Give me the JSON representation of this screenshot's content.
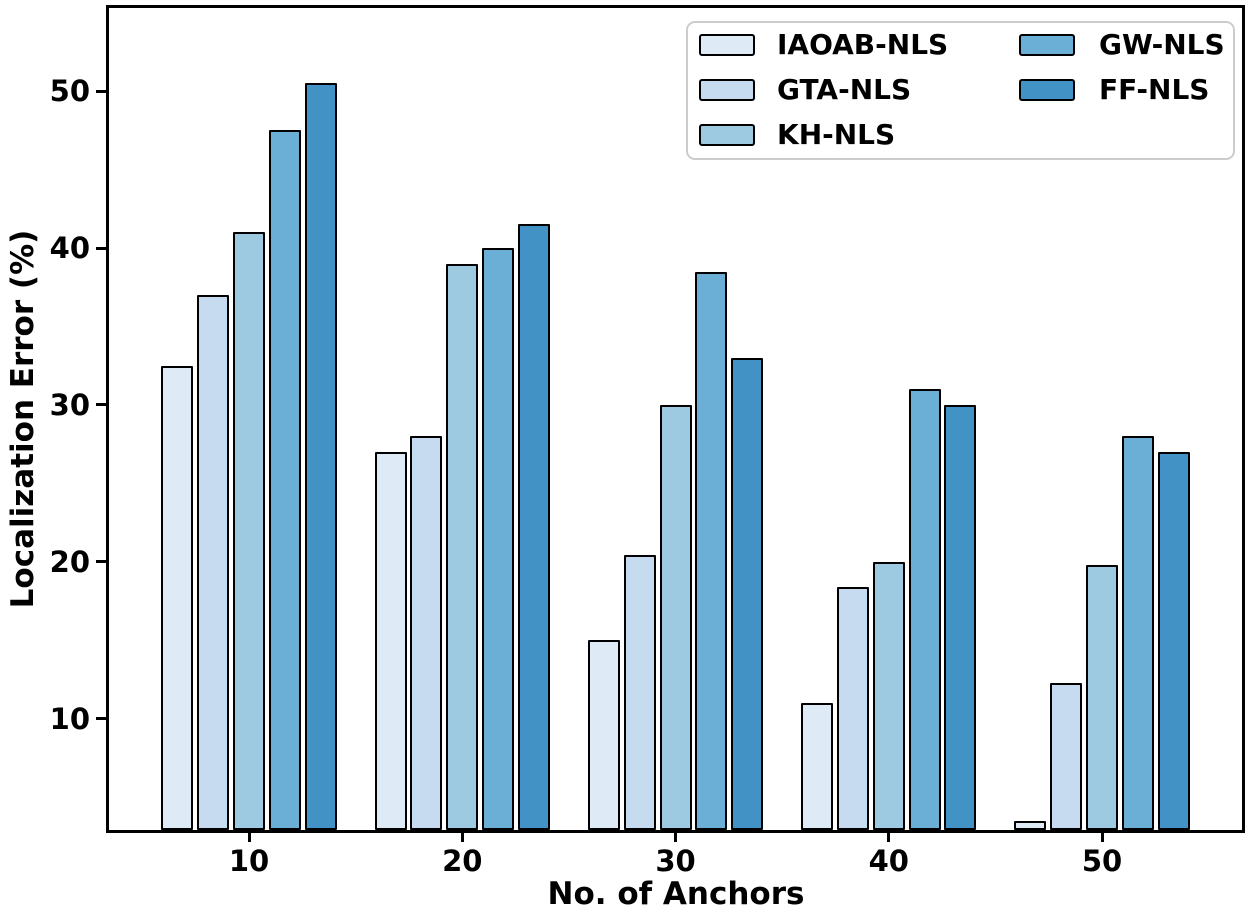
{
  "chart_data": {
    "type": "bar",
    "title": "",
    "xlabel": "No. of Anchors",
    "ylabel": "Localization Error (%)",
    "categories": [
      "10",
      "20",
      "30",
      "40",
      "50"
    ],
    "series": [
      {
        "name": "IAOAB-NLS",
        "color": "#deebf7",
        "values": [
          32.5,
          27,
          15,
          11,
          3.5
        ]
      },
      {
        "name": "GTA-NLS",
        "color": "#c6dbef",
        "values": [
          37,
          28,
          20.4,
          18.4,
          12.3
        ]
      },
      {
        "name": "KH-NLS",
        "color": "#9ecae1",
        "values": [
          41,
          39,
          30,
          20,
          19.8
        ]
      },
      {
        "name": "GW-NLS",
        "color": "#6baed6",
        "values": [
          47.5,
          40,
          38.5,
          31,
          28
        ]
      },
      {
        "name": "FF-NLS",
        "color": "#4292c6",
        "values": [
          50.5,
          41.5,
          33,
          30,
          27
        ]
      }
    ],
    "ylim": [
      2.9,
      55.3
    ],
    "yticks": [
      10,
      20,
      30,
      40,
      50
    ],
    "grid": false,
    "legend_position": "upper right",
    "legend_columns": 2,
    "bar_edge_color": "#000000",
    "axis_color": "#000000",
    "background_color": "#ffffff"
  }
}
